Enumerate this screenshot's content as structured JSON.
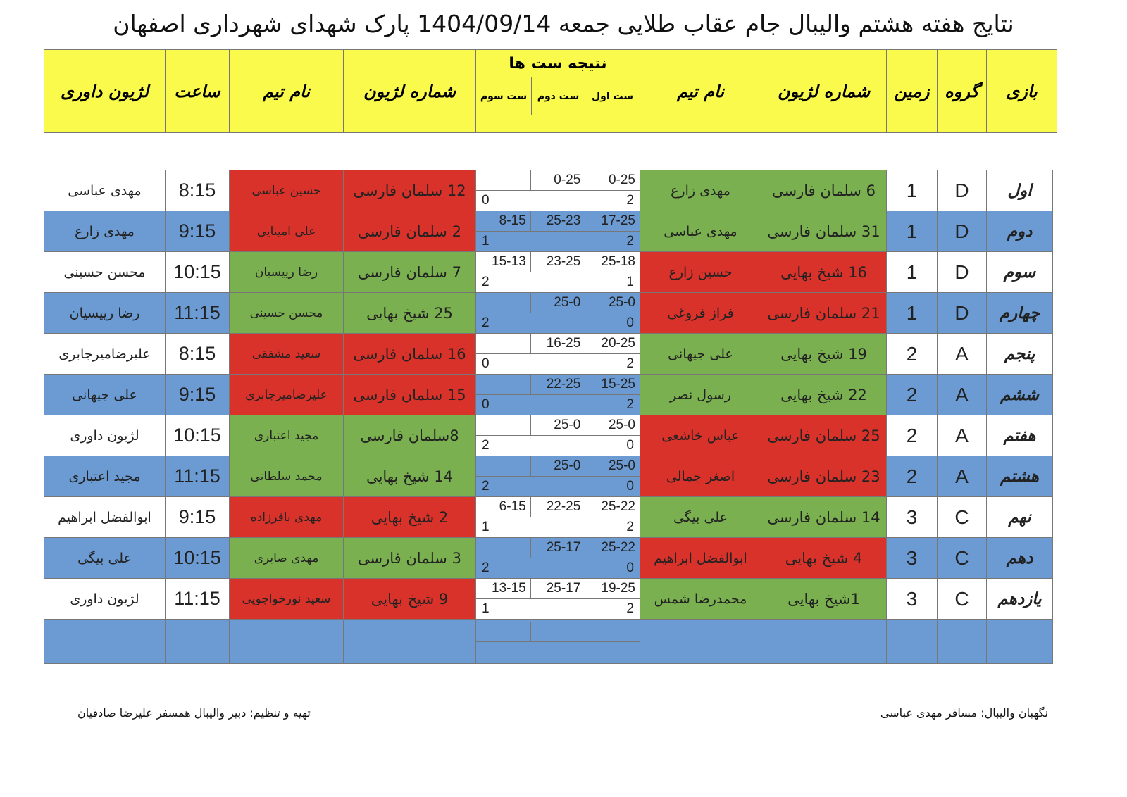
{
  "title": "نتایج هفته هشتم والیبال جام عقاب طلایی جمعه 1404/09/14 پارک شهدای شهرداری اصفهان",
  "headers": {
    "game": "بازی",
    "group": "گروه",
    "field": "زمین",
    "legion1": "شماره لژیون",
    "team1": "نام تیم",
    "sets": "نتیجه ست ها",
    "set1": "ست اول",
    "set2": "ست دوم",
    "set3": "ست سوم",
    "legion2": "شماره لژیون",
    "team2": "نام تیم",
    "time": "ساعت",
    "referee": "لژیون داوری"
  },
  "colors": {
    "header": "#fafa4c",
    "blue_row": "#6b9bd2",
    "winner": "#7ab04f",
    "loser": "#d8322a"
  },
  "rows": [
    {
      "game": "اول",
      "group": "D",
      "field": "1",
      "legion1": "6 سلمان فارسی",
      "team1": "مهدی زارع",
      "c1": "g",
      "sets": [
        "0-25",
        "0-25",
        ""
      ],
      "s1": "2",
      "s2": "0",
      "legion2": "12 سلمان فارسی",
      "team2": "حسین عباسی",
      "c2": "r",
      "time": "8:15",
      "referee": "مهدی عباسی",
      "bg": "w"
    },
    {
      "game": "دوم",
      "group": "D",
      "field": "1",
      "legion1": "31 سلمان فارسی",
      "team1": "مهدی عباسی",
      "c1": "g",
      "sets": [
        "17-25",
        "25-23",
        "8-15"
      ],
      "s1": "2",
      "s2": "1",
      "legion2": "2 سلمان فارسی",
      "team2": "علی امینایی",
      "c2": "r",
      "time": "9:15",
      "referee": "مهدی زارع",
      "bg": "b"
    },
    {
      "game": "سوم",
      "group": "D",
      "field": "1",
      "legion1": "16 شیخ بهایی",
      "team1": "حسین زارع",
      "c1": "r",
      "sets": [
        "25-18",
        "23-25",
        "15-13"
      ],
      "s1": "1",
      "s2": "2",
      "legion2": "7 سلمان فارسی",
      "team2": "رضا رییسیان",
      "c2": "g",
      "time": "10:15",
      "referee": "محسن حسینی",
      "bg": "w"
    },
    {
      "game": "چهارم",
      "group": "D",
      "field": "1",
      "legion1": "21 سلمان فارسی",
      "team1": "فراز فروغی",
      "c1": "r",
      "sets": [
        "25-0",
        "25-0",
        ""
      ],
      "s1": "0",
      "s2": "2",
      "legion2": "25 شیخ بهایی",
      "team2": "محسن حسینی",
      "c2": "g",
      "time": "11:15",
      "referee": "رضا رییسیان",
      "bg": "b"
    },
    {
      "game": "پنجم",
      "group": "A",
      "field": "2",
      "legion1": "19 شیخ بهایی",
      "team1": "علی جیهانی",
      "c1": "g",
      "sets": [
        "20-25",
        "16-25",
        ""
      ],
      "s1": "2",
      "s2": "0",
      "legion2": "16 سلمان فارسی",
      "team2": "سعید مشفقی",
      "c2": "r",
      "time": "8:15",
      "referee": "علیرضامیرجابری",
      "bg": "w"
    },
    {
      "game": "ششم",
      "group": "A",
      "field": "2",
      "legion1": "22 شیخ بهایی",
      "team1": "رسول نصر",
      "c1": "g",
      "sets": [
        "15-25",
        "22-25",
        ""
      ],
      "s1": "2",
      "s2": "0",
      "legion2": "15 سلمان فارسی",
      "team2": "علیرضامیرجابری",
      "c2": "r",
      "time": "9:15",
      "referee": "علی جیهانی",
      "bg": "b"
    },
    {
      "game": "هفتم",
      "group": "A",
      "field": "2",
      "legion1": "25 سلمان فارسی",
      "team1": "عباس خاشعی",
      "c1": "r",
      "sets": [
        "25-0",
        "25-0",
        ""
      ],
      "s1": "0",
      "s2": "2",
      "legion2": "8سلمان فارسی",
      "team2": "مجید اعتباری",
      "c2": "g",
      "time": "10:15",
      "referee": "لژیون داوری",
      "bg": "w"
    },
    {
      "game": "هشتم",
      "group": "A",
      "field": "2",
      "legion1": "23 سلمان فارسی",
      "team1": "اصغر جمالی",
      "c1": "r",
      "sets": [
        "25-0",
        "25-0",
        ""
      ],
      "s1": "0",
      "s2": "2",
      "legion2": "14 شیخ بهایی",
      "team2": "محمد سلطانی",
      "c2": "g",
      "time": "11:15",
      "referee": "مجید اعتباری",
      "bg": "b"
    },
    {
      "game": "نهم",
      "group": "C",
      "field": "3",
      "legion1": "14 سلمان فارسی",
      "team1": "علی بیگی",
      "c1": "g",
      "sets": [
        "25-22",
        "22-25",
        "6-15"
      ],
      "s1": "2",
      "s2": "1",
      "legion2": "2 شیخ بهایی",
      "team2": "مهدی باقرزاده",
      "c2": "r",
      "time": "9:15",
      "referee": "ابوالفضل ابراهیم",
      "bg": "w"
    },
    {
      "game": "دهم",
      "group": "C",
      "field": "3",
      "legion1": "4 شیخ بهایی",
      "team1": "ابوالفضل ابراهیم",
      "c1": "r",
      "sets": [
        "25-22",
        "25-17",
        ""
      ],
      "s1": "0",
      "s2": "2",
      "legion2": "3 سلمان فارسی",
      "team2": "مهدی صابری",
      "c2": "g",
      "time": "10:15",
      "referee": "علی بیگی",
      "bg": "b"
    },
    {
      "game": "یازدهم",
      "group": "C",
      "field": "3",
      "legion1": "1شیخ بهایی",
      "team1": "محمدرضا شمس",
      "c1": "g",
      "sets": [
        "19-25",
        "25-17",
        "13-15"
      ],
      "s1": "2",
      "s2": "1",
      "legion2": "9 شیخ بهایی",
      "team2": "سعید نورخواجویی",
      "c2": "r",
      "time": "11:15",
      "referee": "لژیون داوری",
      "bg": "w"
    },
    {
      "game": "",
      "group": "",
      "field": "",
      "legion1": "",
      "team1": "",
      "c1": "b",
      "sets": [
        "",
        "",
        ""
      ],
      "s1": "",
      "s2": "",
      "legion2": "",
      "team2": "",
      "c2": "b",
      "time": "",
      "referee": "",
      "bg": "b"
    }
  ],
  "footer": {
    "right": "نگهبان والیبال: مسافر مهدی عباسی",
    "left": "تهیه و تنظیم: دبیر والیبال همسفر علیرضا صادقیان"
  }
}
